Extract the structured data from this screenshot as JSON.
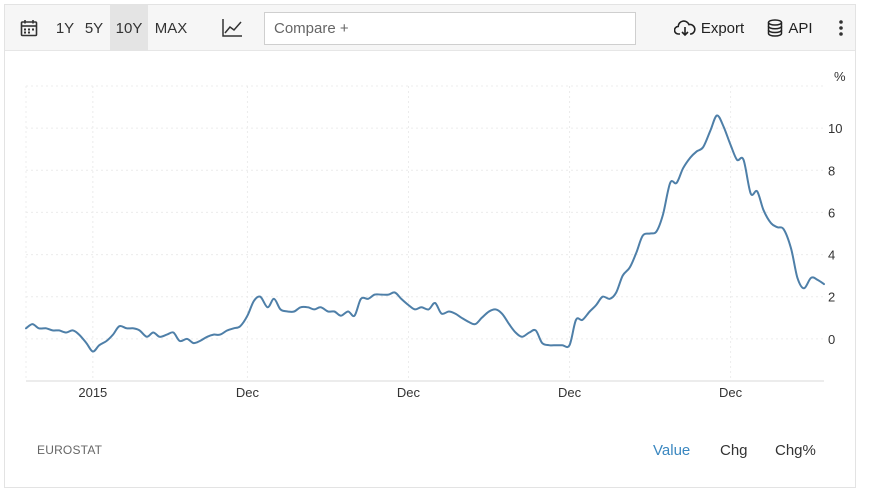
{
  "toolbar": {
    "calendar_icon": "calendar-icon",
    "ranges": [
      "1Y",
      "5Y",
      "10Y",
      "MAX"
    ],
    "active_range": "10Y",
    "chart_type_icon": "line-chart-icon",
    "compare_placeholder": "Compare +",
    "export_label": "Export",
    "export_icon": "cloud-download-icon",
    "api_label": "API",
    "api_icon": "database-icon",
    "more_icon": "vertical-dots-icon"
  },
  "footer": {
    "source": "EUROSTAT",
    "tabs": [
      "Value",
      "Chg",
      "Chg%"
    ],
    "active_tab": "Value"
  },
  "colors": {
    "line": "#4e7fa8",
    "accent": "#3a87c0"
  },
  "chart_data": {
    "type": "line",
    "title": "",
    "xlabel": "",
    "ylabel": "%",
    "ylim": [
      -2,
      12
    ],
    "y_ticks": [
      0,
      2,
      4,
      6,
      8,
      10
    ],
    "x_ticks": [
      {
        "label": "2015",
        "x": 2015.0
      },
      {
        "label": "Dec",
        "x": 2016.92
      },
      {
        "label": "Dec",
        "x": 2018.92
      },
      {
        "label": "Dec",
        "x": 2020.92
      },
      {
        "label": "Dec",
        "x": 2022.92
      }
    ],
    "xlim": [
      2014.17,
      2024.08
    ],
    "grid": true,
    "series": [
      {
        "x": [
          2014.17,
          2014.25,
          2014.33,
          2014.42,
          2014.5,
          2014.58,
          2014.67,
          2014.75,
          2014.83,
          2014.92,
          2015.0,
          2015.08,
          2015.17,
          2015.25,
          2015.33,
          2015.42,
          2015.5,
          2015.58,
          2015.67,
          2015.75,
          2015.83,
          2015.92,
          2016.0,
          2016.08,
          2016.17,
          2016.25,
          2016.33,
          2016.42,
          2016.5,
          2016.58,
          2016.67,
          2016.75,
          2016.83,
          2016.92,
          2017.0,
          2017.08,
          2017.17,
          2017.25,
          2017.33,
          2017.42,
          2017.5,
          2017.58,
          2017.67,
          2017.75,
          2017.83,
          2017.92,
          2018.0,
          2018.08,
          2018.17,
          2018.25,
          2018.33,
          2018.42,
          2018.5,
          2018.58,
          2018.67,
          2018.75,
          2018.83,
          2018.92,
          2019.0,
          2019.08,
          2019.17,
          2019.25,
          2019.33,
          2019.42,
          2019.5,
          2019.58,
          2019.67,
          2019.75,
          2019.83,
          2019.92,
          2020.0,
          2020.08,
          2020.17,
          2020.25,
          2020.33,
          2020.42,
          2020.5,
          2020.58,
          2020.67,
          2020.75,
          2020.83,
          2020.92,
          2021.0,
          2021.08,
          2021.17,
          2021.25,
          2021.33,
          2021.42,
          2021.5,
          2021.58,
          2021.67,
          2021.75,
          2021.83,
          2021.92,
          2022.0,
          2022.08,
          2022.17,
          2022.25,
          2022.33,
          2022.42,
          2022.5,
          2022.58,
          2022.67,
          2022.75,
          2022.83,
          2022.92,
          2023.0,
          2023.08,
          2023.17,
          2023.25,
          2023.33,
          2023.42,
          2023.5,
          2023.58,
          2023.67,
          2023.75,
          2023.83,
          2023.92,
          2024.0,
          2024.08
        ],
        "y": [
          0.5,
          0.7,
          0.5,
          0.5,
          0.4,
          0.4,
          0.3,
          0.4,
          0.2,
          -0.2,
          -0.6,
          -0.3,
          -0.1,
          0.2,
          0.6,
          0.5,
          0.5,
          0.4,
          0.1,
          0.3,
          0.1,
          0.2,
          0.3,
          -0.1,
          0.0,
          -0.2,
          -0.1,
          0.1,
          0.2,
          0.2,
          0.4,
          0.5,
          0.6,
          1.1,
          1.8,
          2.0,
          1.5,
          1.9,
          1.4,
          1.3,
          1.3,
          1.5,
          1.5,
          1.4,
          1.5,
          1.3,
          1.3,
          1.1,
          1.3,
          1.1,
          1.9,
          1.9,
          2.1,
          2.1,
          2.1,
          2.2,
          1.9,
          1.6,
          1.4,
          1.5,
          1.4,
          1.7,
          1.2,
          1.3,
          1.2,
          1.0,
          0.8,
          0.7,
          1.0,
          1.3,
          1.4,
          1.2,
          0.7,
          0.3,
          0.1,
          0.3,
          0.4,
          -0.2,
          -0.3,
          -0.3,
          -0.3,
          -0.3,
          0.9,
          0.9,
          1.3,
          1.6,
          2.0,
          1.9,
          2.2,
          3.0,
          3.4,
          4.1,
          4.9,
          5.0,
          5.1,
          5.9,
          7.4,
          7.4,
          8.1,
          8.6,
          8.9,
          9.1,
          9.9,
          10.6,
          10.1,
          9.2,
          8.5,
          8.5,
          6.9,
          7.0,
          6.1,
          5.5,
          5.3,
          5.2,
          4.3,
          2.9,
          2.4,
          2.9,
          2.8,
          2.6
        ]
      }
    ]
  }
}
